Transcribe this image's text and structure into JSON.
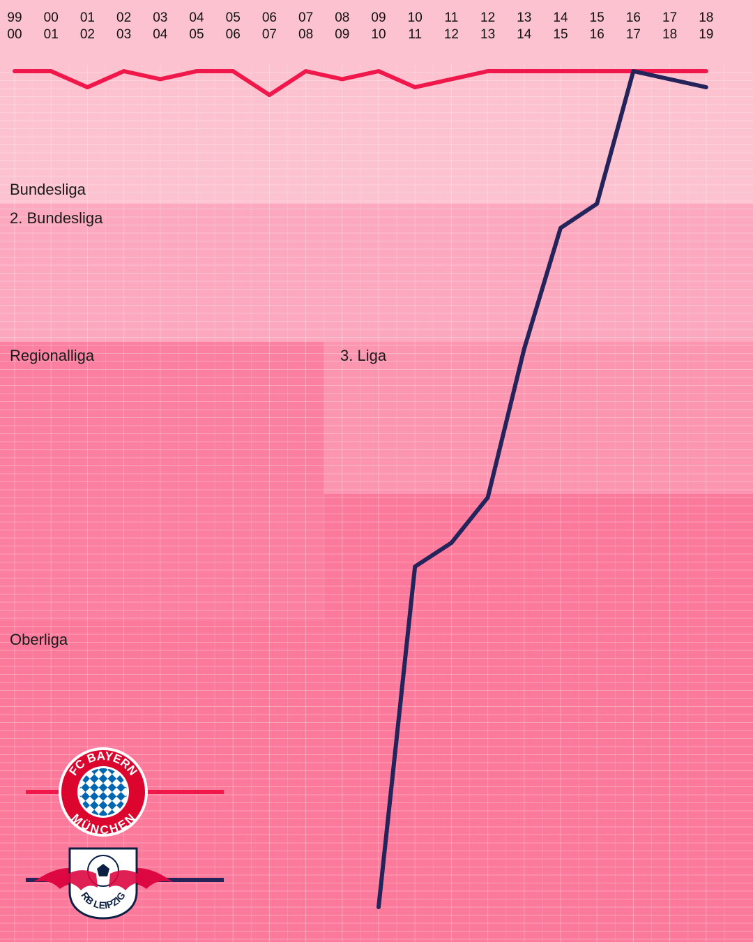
{
  "chart_data": {
    "type": "line",
    "seasons": [
      {
        "top": "99",
        "bottom": "00"
      },
      {
        "top": "00",
        "bottom": "01"
      },
      {
        "top": "01",
        "bottom": "02"
      },
      {
        "top": "02",
        "bottom": "03"
      },
      {
        "top": "03",
        "bottom": "04"
      },
      {
        "top": "04",
        "bottom": "05"
      },
      {
        "top": "05",
        "bottom": "06"
      },
      {
        "top": "06",
        "bottom": "07"
      },
      {
        "top": "07",
        "bottom": "08"
      },
      {
        "top": "08",
        "bottom": "09"
      },
      {
        "top": "09",
        "bottom": "10"
      },
      {
        "top": "10",
        "bottom": "11"
      },
      {
        "top": "11",
        "bottom": "12"
      },
      {
        "top": "12",
        "bottom": "13"
      },
      {
        "top": "13",
        "bottom": "14"
      },
      {
        "top": "14",
        "bottom": "15"
      },
      {
        "top": "15",
        "bottom": "16"
      },
      {
        "top": "16",
        "bottom": "17"
      },
      {
        "top": "17",
        "bottom": "18"
      },
      {
        "top": "18",
        "bottom": "19"
      }
    ],
    "leagues": [
      {
        "name": "Bundesliga",
        "tier": 1
      },
      {
        "name": "2. Bundesliga",
        "tier": 2
      },
      {
        "name": "3. Liga",
        "tier": 3
      },
      {
        "name": "Regionalliga",
        "tier": 3
      },
      {
        "name": "Oberliga",
        "tier": 4
      }
    ],
    "y_unit": "national league position (1 = top of Bundesliga)",
    "series": [
      {
        "club": "FC Bayern München",
        "color": "#f0184a",
        "values": [
          1,
          1,
          3,
          1,
          2,
          1,
          1,
          4,
          1,
          2,
          1,
          3,
          2,
          1,
          1,
          1,
          1,
          1,
          1,
          1
        ]
      },
      {
        "club": "RB Leipzig",
        "color": "#24235a",
        "values": [
          null,
          null,
          null,
          null,
          null,
          null,
          null,
          null,
          null,
          null,
          111,
          66,
          60,
          54,
          36,
          21,
          18,
          1,
          2,
          3
        ]
      }
    ],
    "grid": true
  },
  "legend": {
    "bayern": {
      "logo_text_top": "FC BAYERN",
      "logo_text_bottom": "MÜNCHEN",
      "line_color": "#f0184a"
    },
    "leipzig": {
      "logo_text": "RB LEIPZIG",
      "line_color": "#24235a"
    }
  },
  "colors": {
    "bundesliga_zone": "#fdc2cf",
    "zweite_zone": "#fca9bf",
    "dritte_zone": "#fc95b0",
    "regional_zone": "#fb7fa0",
    "oberliga_zone": "#fb7a9c"
  }
}
